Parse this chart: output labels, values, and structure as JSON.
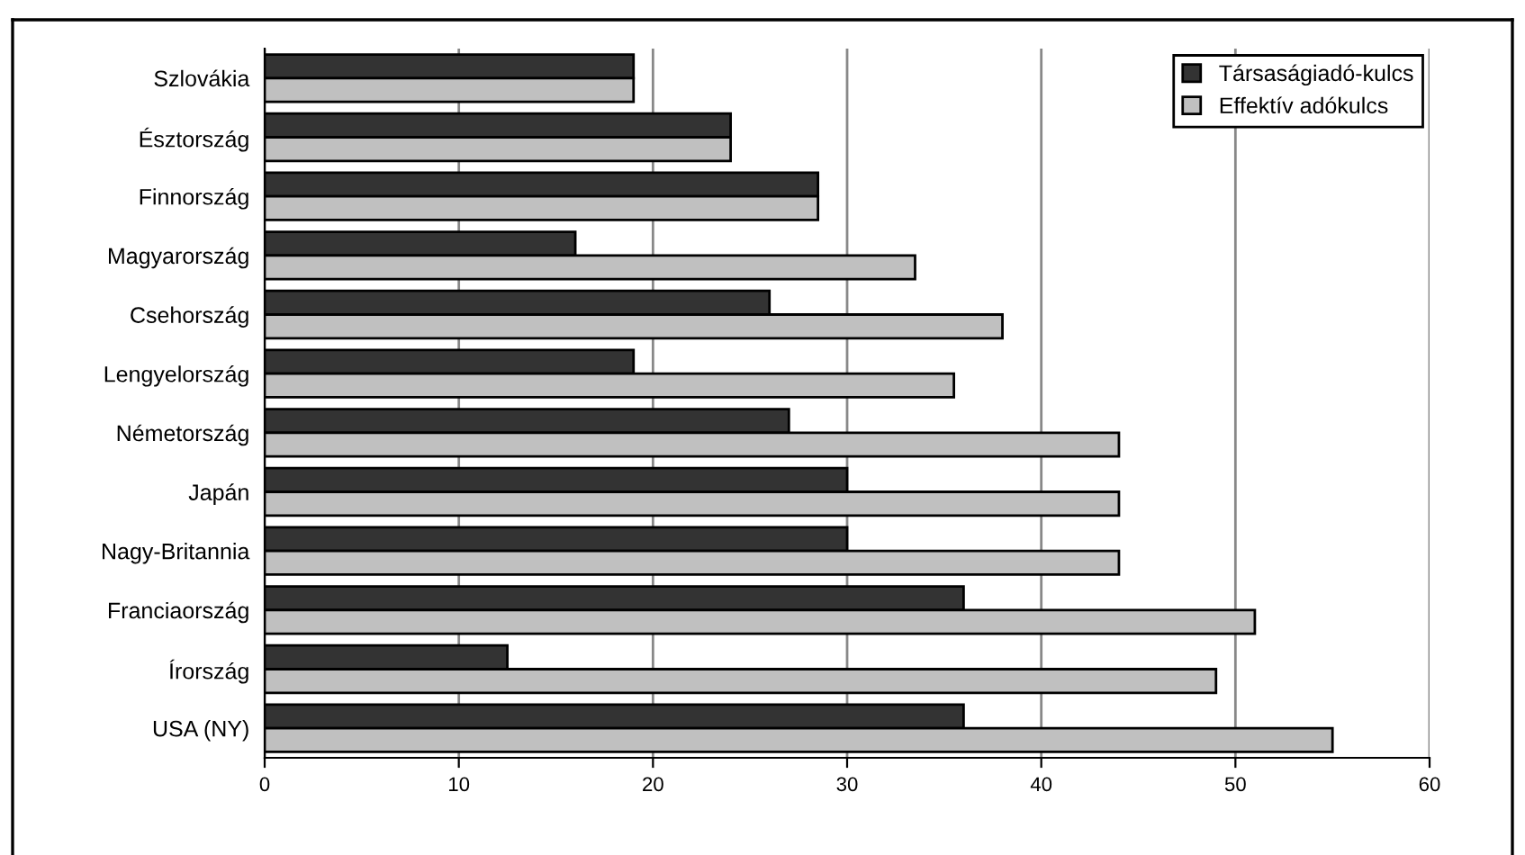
{
  "chart_data": {
    "type": "bar",
    "orientation": "horizontal",
    "categories": [
      "Szlovákia",
      "Észtország",
      "Finnország",
      "Magyarország",
      "Csehország",
      "Lengyelország",
      "Németország",
      "Japán",
      "Nagy-Britannia",
      "Franciaország",
      "Írország",
      "USA (NY)"
    ],
    "series": [
      {
        "name": "Társaságiadó-kulcs",
        "color": "#333333",
        "values": [
          19,
          24,
          28.5,
          16,
          26,
          19,
          27,
          30,
          30,
          36,
          12.5,
          36
        ]
      },
      {
        "name": "Effektív adókulcs",
        "color": "#c0c0c0",
        "values": [
          19,
          24,
          28.5,
          33.5,
          38,
          35.5,
          44,
          44,
          44,
          51,
          49,
          55
        ]
      }
    ],
    "xlim": [
      0,
      60
    ],
    "xticks": [
      0,
      10,
      20,
      30,
      40,
      50,
      60
    ],
    "grid": "x",
    "legend": "top right"
  }
}
